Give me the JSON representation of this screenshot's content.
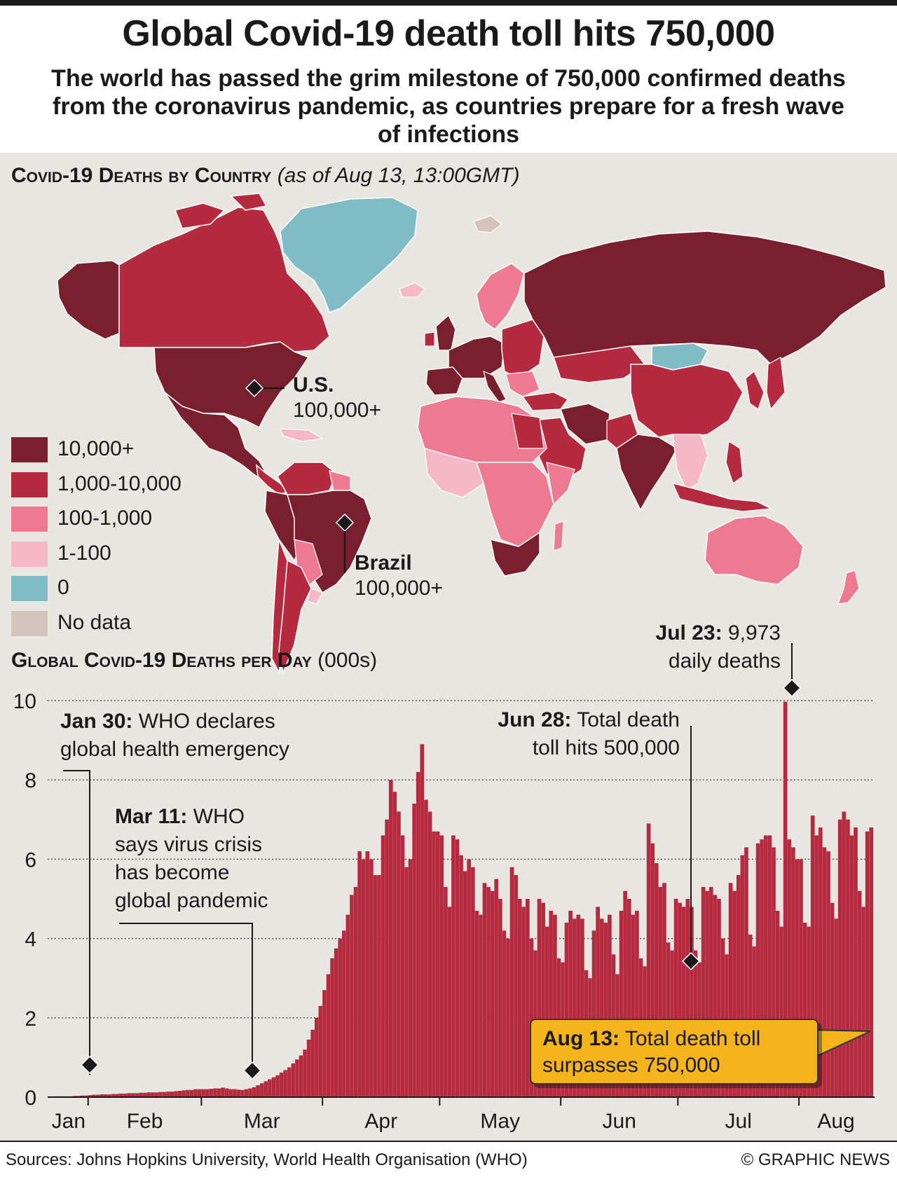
{
  "title": "Global Covid-19 death toll hits 750,000",
  "subtitle": "The world has passed the grim milestone of 750,000 confirmed deaths from the coronavirus pandemic, as countries prepare for a fresh wave of infections",
  "map": {
    "heading": "Covid-19 Deaths by Country",
    "heading_note": "(as of Aug 13, 13:00GMT)",
    "legend": [
      {
        "label": "10,000+",
        "color": "#7a1f2e"
      },
      {
        "label": "1,000-10,000",
        "color": "#b52a3e"
      },
      {
        "label": "100-1,000",
        "color": "#ee7a92"
      },
      {
        "label": "1-100",
        "color": "#f6b8c6"
      },
      {
        "label": "0",
        "color": "#7fbcc6"
      },
      {
        "label": "No data",
        "color": "#d3c3bc"
      }
    ],
    "callouts": {
      "us": {
        "name": "U.S.",
        "value": "100,000+"
      },
      "brazil": {
        "name": "Brazil",
        "value": "100,000+"
      }
    }
  },
  "chart_heading": "Global Covid-19 Deaths per Day",
  "chart_heading_unit": "(000s)",
  "annotations": {
    "jan30": {
      "date": "Jan 30:",
      "text_l1": "WHO declares",
      "text_l2": "global health emergency"
    },
    "mar11": {
      "date": "Mar 11:",
      "text_l1": "WHO",
      "text_l2": "says virus crisis",
      "text_l3": "has become",
      "text_l4": "global pandemic"
    },
    "jun28": {
      "date": "Jun 28:",
      "text_l1": "Total death",
      "text_l2": "toll hits 500,000"
    },
    "jul23": {
      "date": "Jul 23:",
      "text_l1": "9,973",
      "text_l2": "daily deaths"
    },
    "aug13": {
      "date": "Aug 13:",
      "text_l1": "Total death toll",
      "text_l2": "surpasses 750,000"
    }
  },
  "chart_data": {
    "type": "bar",
    "x_start": "2020-01-22",
    "x_end": "2020-08-13",
    "ylim": [
      0,
      10
    ],
    "yticks": [
      0,
      2,
      4,
      6,
      8,
      10
    ],
    "ytick_labels": [
      "0",
      "2",
      "4",
      "6",
      "8",
      "10"
    ],
    "xtick_labels": [
      "Jan",
      "Feb",
      "Mar",
      "Apr",
      "May",
      "Jun",
      "Jul",
      "Aug"
    ],
    "grid": true,
    "bar_color": "#b52a3e",
    "values": [
      0.02,
      0.02,
      0.02,
      0.02,
      0.02,
      0.02,
      0.03,
      0.03,
      0.04,
      0.04,
      0.05,
      0.06,
      0.06,
      0.07,
      0.07,
      0.07,
      0.08,
      0.08,
      0.09,
      0.09,
      0.1,
      0.1,
      0.1,
      0.11,
      0.11,
      0.12,
      0.12,
      0.12,
      0.13,
      0.13,
      0.14,
      0.14,
      0.15,
      0.16,
      0.17,
      0.18,
      0.18,
      0.2,
      0.2,
      0.2,
      0.2,
      0.21,
      0.22,
      0.22,
      0.24,
      0.22,
      0.2,
      0.2,
      0.19,
      0.18,
      0.2,
      0.22,
      0.25,
      0.3,
      0.35,
      0.4,
      0.45,
      0.5,
      0.55,
      0.62,
      0.68,
      0.75,
      0.85,
      0.95,
      1.05,
      1.2,
      1.45,
      1.7,
      2.0,
      2.3,
      2.7,
      3.1,
      3.5,
      3.75,
      4.0,
      4.2,
      4.6,
      5.1,
      5.3,
      6.2,
      6.0,
      6.2,
      6.0,
      5.6,
      5.6,
      6.6,
      7.0,
      8.0,
      7.7,
      7.2,
      6.6,
      5.8,
      6.0,
      7.4,
      8.2,
      8.9,
      7.5,
      7.2,
      6.7,
      6.7,
      6.6,
      5.3,
      4.8,
      6.6,
      6.5,
      6.1,
      5.7,
      6.0,
      5.8,
      4.7,
      4.6,
      5.4,
      5.3,
      5.2,
      5.5,
      5.0,
      4.2,
      4.0,
      5.8,
      5.6,
      5.0,
      4.8,
      5.0,
      4.0,
      3.7,
      5.0,
      4.9,
      4.3,
      4.7,
      4.6,
      3.5,
      3.4,
      4.4,
      4.7,
      4.5,
      4.6,
      4.5,
      3.2,
      3.0,
      4.2,
      4.8,
      4.5,
      4.4,
      4.6,
      3.6,
      3.1,
      4.7,
      5.2,
      5.0,
      4.6,
      4.7,
      3.5,
      3.3,
      6.9,
      6.4,
      5.9,
      5.3,
      5.4,
      3.9,
      3.7,
      5.0,
      4.9,
      4.8,
      5.0,
      4.8,
      3.7,
      3.4,
      5.3,
      5.2,
      5.3,
      5.1,
      5.0,
      4.0,
      3.6,
      5.4,
      5.2,
      5.6,
      6.1,
      6.3,
      4.1,
      3.8,
      6.4,
      6.5,
      6.6,
      6.6,
      6.3,
      4.7,
      4.3,
      9.97,
      6.5,
      6.3,
      6.0,
      6.0,
      4.4,
      4.3,
      7.1,
      6.6,
      6.8,
      6.3,
      6.2,
      4.9,
      4.5,
      7.0,
      7.2,
      7.0,
      6.6,
      6.8,
      5.2,
      4.8,
      6.7,
      6.8
    ]
  }
}
